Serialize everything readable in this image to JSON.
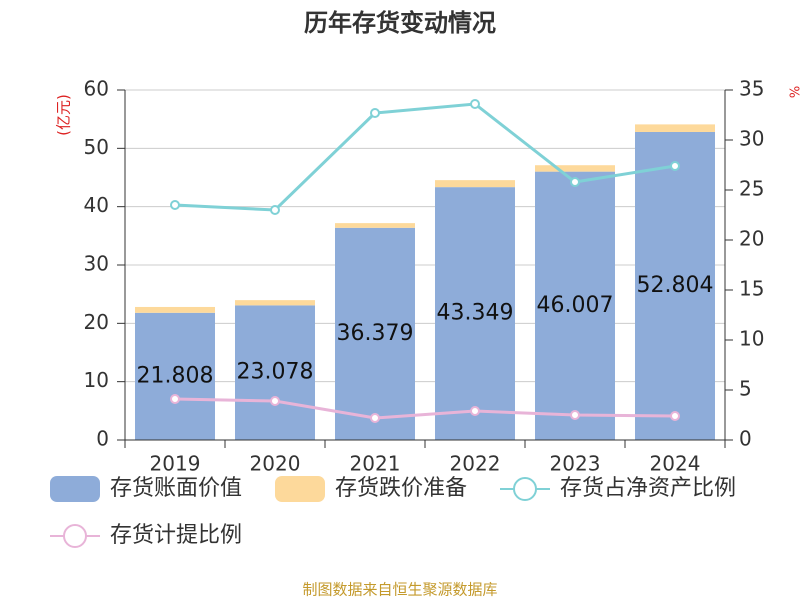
{
  "chart_data": {
    "type": "bar",
    "title": "历年存货变动情况",
    "source": "制图数据来自恒生聚源数据库",
    "y_label": "(亿元)",
    "y2_label": "%",
    "categories": [
      "2019",
      "2020",
      "2021",
      "2022",
      "2023",
      "2024"
    ],
    "series": [
      {
        "name": "存货账面价值",
        "type": "bar",
        "color": "#8eacd9",
        "values": [
          21.808,
          23.078,
          36.379,
          43.349,
          46.007,
          52.804
        ]
      },
      {
        "name": "存货跌价准备",
        "type": "bar",
        "color": "#fdd99b",
        "values": [
          1.0,
          0.9,
          0.8,
          1.2,
          1.1,
          1.3
        ]
      },
      {
        "name": "存货占净资产比例",
        "type": "line",
        "axis": "y2",
        "color": "#7fd1d6",
        "values": [
          23.5,
          23.0,
          32.7,
          33.6,
          25.8,
          27.4
        ]
      },
      {
        "name": "存货计提比例",
        "type": "line",
        "axis": "y2",
        "color": "#e8b4d8",
        "values": [
          4.1,
          3.9,
          2.2,
          2.9,
          2.5,
          2.4
        ]
      }
    ],
    "ylim": [
      0,
      60
    ],
    "yticks": [
      0,
      10,
      20,
      30,
      40,
      50,
      60
    ],
    "y2lim": [
      0,
      35
    ],
    "y2ticks": [
      0,
      5,
      10,
      15,
      20,
      25,
      30,
      35
    ],
    "grid": true
  }
}
